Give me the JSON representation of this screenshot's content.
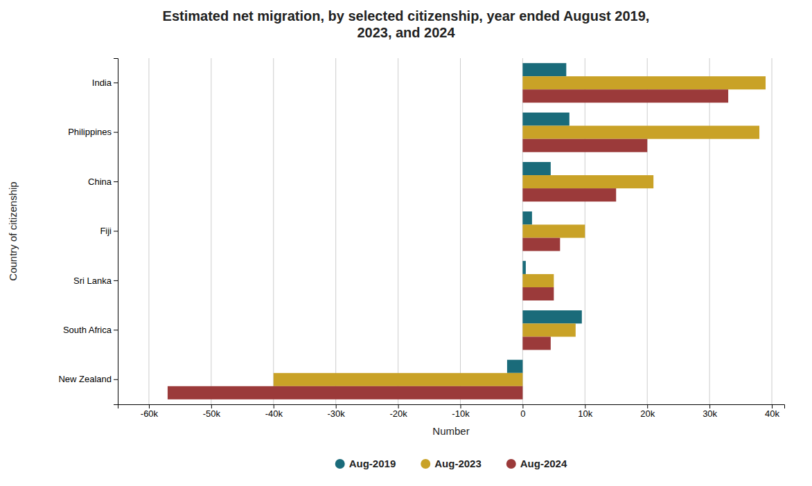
{
  "chart_data": {
    "type": "bar",
    "orientation": "horizontal",
    "title": "Estimated net migration, by selected citizenship, year ended August 2019,\n2023, and 2024",
    "xlabel": "Number",
    "ylabel": "Country of citizenship",
    "categories": [
      "India",
      "Philippines",
      "China",
      "Fiji",
      "Sri Lanka",
      "South Africa",
      "New Zealand"
    ],
    "series": [
      {
        "name": "Aug-2019",
        "color": "#1a6b7a",
        "values": [
          7000,
          7500,
          4500,
          1500,
          500,
          9500,
          -2500
        ]
      },
      {
        "name": "Aug-2023",
        "color": "#c9a227",
        "values": [
          39000,
          38000,
          21000,
          10000,
          5000,
          8500,
          -40000
        ]
      },
      {
        "name": "Aug-2024",
        "color": "#9b3a3a",
        "values": [
          33000,
          20000,
          15000,
          6000,
          5000,
          4500,
          -57000
        ]
      }
    ],
    "xlim": [
      -65000,
      42000
    ],
    "xticks": [
      {
        "value": -60000,
        "label": "-60k"
      },
      {
        "value": -50000,
        "label": "-50k"
      },
      {
        "value": -40000,
        "label": "-40k"
      },
      {
        "value": -30000,
        "label": "-30k"
      },
      {
        "value": -20000,
        "label": "-20k"
      },
      {
        "value": -10000,
        "label": "-10k"
      },
      0,
      {
        "value": 10000,
        "label": "10k"
      },
      {
        "value": 20000,
        "label": "20k"
      },
      {
        "value": 30000,
        "label": "30k"
      },
      {
        "value": 40000,
        "label": "40k"
      }
    ],
    "grid": true,
    "legend": "bottom"
  }
}
